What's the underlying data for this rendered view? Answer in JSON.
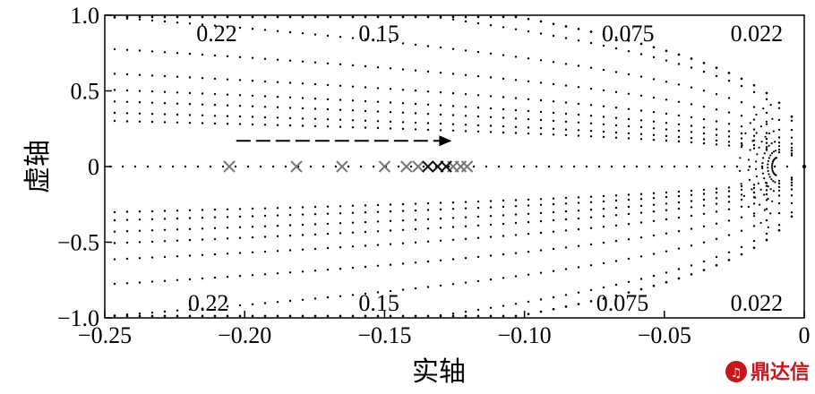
{
  "chart_data": {
    "type": "scatter",
    "title": "",
    "xlabel": "实轴",
    "ylabel": "虚轴",
    "xlim": [
      -0.25,
      0.0
    ],
    "ylim": [
      -1.0,
      1.0
    ],
    "grid": "damping-ratio contour grid",
    "x_ticks": [
      -0.25,
      -0.2,
      -0.15,
      -0.1,
      -0.05,
      0
    ],
    "x_tick_labels": [
      "−0.25",
      "−0.20",
      "−0.15",
      "−0.10",
      "−0.05",
      "0"
    ],
    "y_ticks": [
      1.0,
      0.5,
      0,
      -0.5,
      -1.0
    ],
    "y_tick_labels": [
      "1.0",
      "0.5",
      "0",
      "−0.5",
      "−1.0"
    ],
    "damping_labels_top": [
      {
        "text": "0.22",
        "x": -0.21
      },
      {
        "text": "0.15",
        "x": -0.152
      },
      {
        "text": "0.075",
        "x": -0.063
      },
      {
        "text": "0.022",
        "x": -0.017
      }
    ],
    "damping_labels_bottom": [
      {
        "text": "0.22",
        "x": -0.213
      },
      {
        "text": "0.15",
        "x": -0.152
      },
      {
        "text": "0.075",
        "x": -0.065
      },
      {
        "text": "0.022",
        "x": -0.017
      }
    ],
    "poles_light": [
      -0.2055,
      -0.1815,
      -0.1652,
      -0.15,
      -0.1422,
      -0.138,
      -0.1255,
      -0.1228,
      -0.1205
    ],
    "poles_dark": [
      -0.1345,
      -0.131,
      -0.128
    ],
    "arrow": {
      "from": -0.203,
      "to": -0.126,
      "y": 0.17
    }
  },
  "watermark": {
    "text": "鼎达信",
    "color": "#c8161d"
  }
}
